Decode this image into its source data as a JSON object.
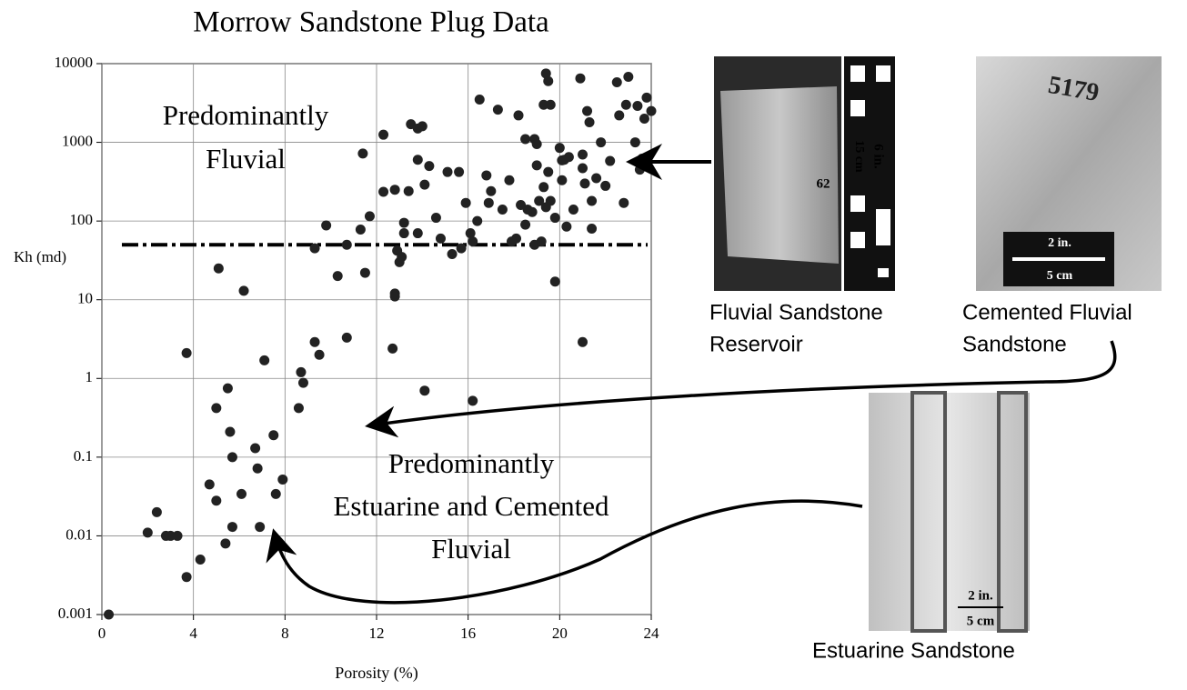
{
  "chart_data": {
    "type": "scatter",
    "title": "Morrow Sandstone Plug Data",
    "x_label": "Porosity (%)",
    "y_label": "Kh (md)",
    "x": [
      0.3,
      3.7,
      4.3,
      5.4,
      2.0,
      2.8,
      3.0,
      3.3,
      2.4,
      4.7,
      5.0,
      5.7,
      6.9,
      6.1,
      7.6,
      7.9,
      6.8,
      5.7,
      6.7,
      7.5,
      5.6,
      5.5,
      5.0,
      7.1,
      3.7,
      8.6,
      8.8,
      8.7,
      9.3,
      9.5,
      10.7,
      12.7,
      14.1,
      16.2,
      21.0,
      19.8,
      5.1,
      6.2,
      12.8,
      12.8,
      9.3,
      9.8,
      10.3,
      10.7,
      11.3,
      11.5,
      11.7,
      11.4,
      12.3,
      12.3,
      12.8,
      12.9,
      13.0,
      13.1,
      13.2,
      13.2,
      13.4,
      13.5,
      13.8,
      14.0,
      13.8,
      14.1,
      13.8,
      14.3,
      14.6,
      14.8,
      15.1,
      15.3,
      15.7,
      15.6,
      15.9,
      16.1,
      16.2,
      16.4,
      16.5,
      16.8,
      16.9,
      17.0,
      17.3,
      17.5,
      17.8,
      18.1,
      18.2,
      18.3,
      18.5,
      18.5,
      18.8,
      18.9,
      18.9,
      19.0,
      19.0,
      19.2,
      19.3,
      19.4,
      19.5,
      19.6,
      19.3,
      19.6,
      19.4,
      19.5,
      19.8,
      20.0,
      20.1,
      20.2,
      20.3,
      20.4,
      20.6,
      20.9,
      21.0,
      21.0,
      21.1,
      21.2,
      21.3,
      21.4,
      21.4,
      21.6,
      21.8,
      22.0,
      22.2,
      22.5,
      22.6,
      22.8,
      22.9,
      23.0,
      23.3,
      23.4,
      23.5,
      23.6,
      23.7,
      23.8,
      24.0,
      20.1,
      19.1,
      18.6,
      17.9
    ],
    "values": [
      0.001,
      0.003,
      0.005,
      0.008,
      0.011,
      0.01,
      0.01,
      0.01,
      0.02,
      0.045,
      0.028,
      0.013,
      0.013,
      0.034,
      0.034,
      0.052,
      0.072,
      0.1,
      0.13,
      0.19,
      0.21,
      0.75,
      0.42,
      1.7,
      2.1,
      0.42,
      0.88,
      1.2,
      2.9,
      2.0,
      3.3,
      2.4,
      0.7,
      0.52,
      2.9,
      17,
      25,
      13,
      12,
      11,
      45,
      88,
      20,
      50,
      78,
      22,
      115,
      720,
      1250,
      235,
      250,
      42,
      30,
      35,
      95,
      70,
      240,
      1700,
      1500,
      1600,
      600,
      290,
      70,
      500,
      110,
      60,
      420,
      38,
      45,
      420,
      170,
      70,
      55,
      100,
      3500,
      380,
      170,
      240,
      2600,
      140,
      330,
      60,
      2200,
      160,
      90,
      1100,
      130,
      50,
      1100,
      950,
      510,
      55,
      270,
      150,
      420,
      180,
      3000,
      3000,
      7500,
      6000,
      110,
      850,
      330,
      600,
      85,
      650,
      140,
      6500,
      700,
      470,
      300,
      2500,
      1800,
      80,
      180,
      350,
      1000,
      280,
      580,
      5800,
      2200,
      170,
      3000,
      6800,
      1000,
      2900,
      450,
      620,
      2000,
      3700,
      2500,
      590,
      180,
      140,
      55
    ],
    "color": "#222222",
    "xlim": [
      0,
      24
    ],
    "ylim": [
      0.001,
      10000
    ],
    "xticks": [
      0,
      4,
      8,
      12,
      16,
      20,
      24
    ],
    "yticks": [
      10000,
      1000,
      100,
      10,
      1,
      0.1,
      0.01,
      0.001
    ],
    "log_y": true,
    "grid": true,
    "threshold": 50,
    "annotations": [
      {
        "lines": [
          "Predominantly",
          "Fluvial"
        ]
      },
      {
        "lines": [
          "Predominantly",
          "Estuarine and Cemented",
          "Fluvial"
        ]
      }
    ]
  },
  "photos": [
    {
      "caption": [
        "Fluvial Sandstone",
        "Reservoir"
      ],
      "labels": [
        "62",
        "6 in.",
        "15 cm"
      ]
    },
    {
      "caption": [
        "Cemented Fluvial",
        "Sandstone"
      ],
      "labels": [
        "5179",
        "2 in.",
        "5 cm"
      ]
    },
    {
      "caption": [
        "Estuarine Sandstone"
      ],
      "labels": [
        "2 in.",
        "5 cm"
      ]
    }
  ]
}
